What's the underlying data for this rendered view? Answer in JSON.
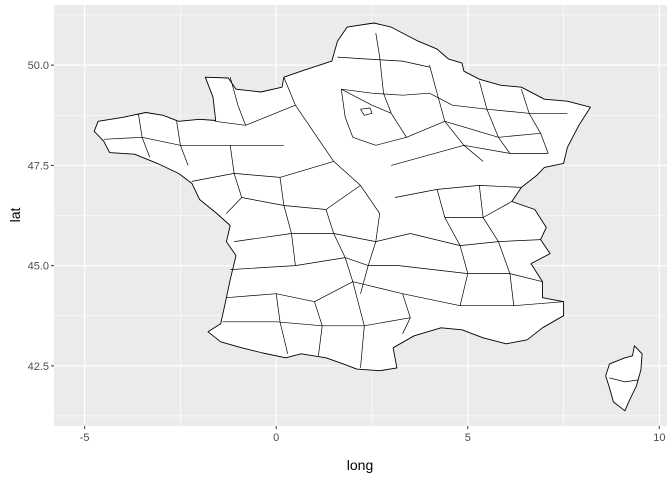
{
  "chart_data": {
    "type": "map",
    "xlabel": "long",
    "ylabel": "lat",
    "xlim": [
      -5.8,
      10.2
    ],
    "ylim": [
      41.0,
      51.5
    ],
    "x_ticks": [
      -5,
      0,
      5,
      10
    ],
    "x_tick_labels": [
      "-5",
      "0",
      "5",
      "10"
    ],
    "y_ticks": [
      42.5,
      45.0,
      47.5,
      50.0
    ],
    "y_tick_labels": [
      "42.5",
      "45.0",
      "47.5",
      "50.0"
    ],
    "grid": true,
    "panel_color": "#ebebeb",
    "grid_color": "#ffffff",
    "fill_color": "#ffffff",
    "stroke_color": "#000000",
    "mainland_outline": [
      [
        2.55,
        51.05
      ],
      [
        3.0,
        50.95
      ],
      [
        3.3,
        50.8
      ],
      [
        3.7,
        50.6
      ],
      [
        4.2,
        50.4
      ],
      [
        4.5,
        50.15
      ],
      [
        4.85,
        50.05
      ],
      [
        4.9,
        49.85
      ],
      [
        5.3,
        49.65
      ],
      [
        5.85,
        49.5
      ],
      [
        6.4,
        49.45
      ],
      [
        7.0,
        49.15
      ],
      [
        7.6,
        49.1
      ],
      [
        8.2,
        48.95
      ],
      [
        7.9,
        48.5
      ],
      [
        7.6,
        47.95
      ],
      [
        7.5,
        47.55
      ],
      [
        7.0,
        47.45
      ],
      [
        6.8,
        47.25
      ],
      [
        6.4,
        46.95
      ],
      [
        6.15,
        46.6
      ],
      [
        6.75,
        46.4
      ],
      [
        7.05,
        45.95
      ],
      [
        6.9,
        45.65
      ],
      [
        7.15,
        45.3
      ],
      [
        6.65,
        45.05
      ],
      [
        6.95,
        44.6
      ],
      [
        6.95,
        44.2
      ],
      [
        7.5,
        44.1
      ],
      [
        7.5,
        43.75
      ],
      [
        6.95,
        43.45
      ],
      [
        6.55,
        43.15
      ],
      [
        6.0,
        43.05
      ],
      [
        5.4,
        43.2
      ],
      [
        4.85,
        43.4
      ],
      [
        4.3,
        43.45
      ],
      [
        3.6,
        43.25
      ],
      [
        3.05,
        42.95
      ],
      [
        3.15,
        42.45
      ],
      [
        2.7,
        42.38
      ],
      [
        2.1,
        42.42
      ],
      [
        1.75,
        42.55
      ],
      [
        1.3,
        42.7
      ],
      [
        0.65,
        42.8
      ],
      [
        0.25,
        42.7
      ],
      [
        -0.35,
        42.82
      ],
      [
        -0.9,
        42.95
      ],
      [
        -1.45,
        43.1
      ],
      [
        -1.78,
        43.35
      ],
      [
        -1.45,
        43.55
      ],
      [
        -1.3,
        44.2
      ],
      [
        -1.2,
        44.65
      ],
      [
        -1.05,
        45.25
      ],
      [
        -1.3,
        45.6
      ],
      [
        -1.2,
        46.0
      ],
      [
        -1.55,
        46.3
      ],
      [
        -2.0,
        46.65
      ],
      [
        -2.2,
        47.05
      ],
      [
        -2.55,
        47.3
      ],
      [
        -3.1,
        47.55
      ],
      [
        -3.7,
        47.78
      ],
      [
        -4.35,
        47.82
      ],
      [
        -4.5,
        48.1
      ],
      [
        -4.75,
        48.35
      ],
      [
        -4.65,
        48.6
      ],
      [
        -4.0,
        48.7
      ],
      [
        -3.4,
        48.82
      ],
      [
        -2.95,
        48.75
      ],
      [
        -2.55,
        48.6
      ],
      [
        -2.0,
        48.65
      ],
      [
        -1.58,
        48.62
      ],
      [
        -1.65,
        49.2
      ],
      [
        -1.85,
        49.7
      ],
      [
        -1.25,
        49.68
      ],
      [
        -1.05,
        49.4
      ],
      [
        -0.4,
        49.33
      ],
      [
        0.15,
        49.45
      ],
      [
        0.2,
        49.7
      ],
      [
        0.65,
        49.85
      ],
      [
        1.45,
        50.1
      ],
      [
        1.6,
        50.6
      ],
      [
        1.85,
        50.95
      ]
    ],
    "corsica_outline": [
      [
        9.35,
        43.0
      ],
      [
        9.55,
        42.8
      ],
      [
        9.52,
        42.4
      ],
      [
        9.4,
        42.0
      ],
      [
        9.2,
        41.6
      ],
      [
        9.1,
        41.38
      ],
      [
        8.8,
        41.6
      ],
      [
        8.7,
        41.95
      ],
      [
        8.6,
        42.25
      ],
      [
        8.7,
        42.55
      ],
      [
        9.1,
        42.7
      ],
      [
        9.3,
        42.75
      ]
    ],
    "department_borders": [
      [
        [
          1.6,
          50.2
        ],
        [
          2.4,
          50.15
        ],
        [
          3.3,
          50.1
        ],
        [
          4.0,
          49.95
        ]
      ],
      [
        [
          1.7,
          49.4
        ],
        [
          2.5,
          49.3
        ],
        [
          3.3,
          49.25
        ],
        [
          4.0,
          49.3
        ]
      ],
      [
        [
          2.6,
          50.8
        ],
        [
          2.7,
          50.2
        ],
        [
          2.8,
          49.3
        ],
        [
          3.0,
          48.8
        ]
      ],
      [
        [
          4.0,
          50.0
        ],
        [
          4.2,
          49.3
        ],
        [
          4.4,
          48.6
        ],
        [
          4.9,
          48.0
        ],
        [
          5.4,
          47.6
        ]
      ],
      [
        [
          5.3,
          49.6
        ],
        [
          5.5,
          48.9
        ],
        [
          5.8,
          48.2
        ],
        [
          6.1,
          47.8
        ]
      ],
      [
        [
          6.4,
          49.4
        ],
        [
          6.6,
          48.8
        ],
        [
          6.9,
          48.3
        ],
        [
          7.1,
          47.8
        ]
      ],
      [
        [
          4.0,
          49.3
        ],
        [
          4.6,
          49.0
        ],
        [
          5.5,
          48.9
        ],
        [
          6.6,
          48.8
        ],
        [
          7.6,
          48.8
        ]
      ],
      [
        [
          3.4,
          48.2
        ],
        [
          4.4,
          48.6
        ],
        [
          5.8,
          48.2
        ],
        [
          6.9,
          48.3
        ]
      ],
      [
        [
          3.0,
          47.5
        ],
        [
          4.9,
          48.0
        ],
        [
          6.1,
          47.8
        ],
        [
          7.1,
          47.8
        ]
      ],
      [
        [
          3.1,
          46.7
        ],
        [
          4.2,
          46.9
        ],
        [
          5.3,
          47.0
        ],
        [
          6.4,
          46.95
        ]
      ],
      [
        [
          4.2,
          46.9
        ],
        [
          4.4,
          46.2
        ],
        [
          4.8,
          45.5
        ],
        [
          5.0,
          44.8
        ],
        [
          4.8,
          44.0
        ]
      ],
      [
        [
          5.3,
          47.0
        ],
        [
          5.4,
          46.2
        ],
        [
          5.8,
          45.6
        ],
        [
          6.1,
          44.8
        ],
        [
          6.2,
          44.0
        ]
      ],
      [
        [
          4.4,
          46.2
        ],
        [
          5.4,
          46.2
        ],
        [
          6.15,
          46.6
        ]
      ],
      [
        [
          3.5,
          45.8
        ],
        [
          4.8,
          45.5
        ],
        [
          5.8,
          45.6
        ],
        [
          6.9,
          45.65
        ]
      ],
      [
        [
          3.2,
          45.0
        ],
        [
          5.0,
          44.8
        ],
        [
          6.1,
          44.8
        ],
        [
          6.95,
          44.6
        ]
      ],
      [
        [
          3.3,
          44.3
        ],
        [
          4.8,
          44.0
        ],
        [
          6.2,
          44.0
        ],
        [
          7.5,
          44.1
        ]
      ],
      [
        [
          0.2,
          49.7
        ],
        [
          0.5,
          49.0
        ],
        [
          1.0,
          48.3
        ],
        [
          1.5,
          47.6
        ],
        [
          2.2,
          47.0
        ],
        [
          2.7,
          46.3
        ]
      ],
      [
        [
          -1.6,
          48.6
        ],
        [
          -0.8,
          48.5
        ],
        [
          0.5,
          49.0
        ]
      ],
      [
        [
          -1.2,
          49.7
        ],
        [
          -1.0,
          49.0
        ],
        [
          -0.8,
          48.5
        ]
      ],
      [
        [
          -3.6,
          48.8
        ],
        [
          -3.5,
          48.2
        ],
        [
          -3.3,
          47.7
        ]
      ],
      [
        [
          -2.6,
          48.6
        ],
        [
          -2.5,
          48.0
        ],
        [
          -2.3,
          47.5
        ]
      ],
      [
        [
          -4.5,
          48.15
        ],
        [
          -3.5,
          48.2
        ],
        [
          -2.5,
          48.0
        ],
        [
          -1.2,
          48.0
        ],
        [
          0.2,
          48.0
        ]
      ],
      [
        [
          -1.2,
          48.0
        ],
        [
          -1.1,
          47.3
        ],
        [
          -0.9,
          46.7
        ]
      ],
      [
        [
          -2.2,
          47.1
        ],
        [
          -1.1,
          47.3
        ],
        [
          0.1,
          47.2
        ],
        [
          1.5,
          47.6
        ]
      ],
      [
        [
          0.1,
          47.2
        ],
        [
          0.2,
          46.5
        ],
        [
          0.4,
          45.8
        ],
        [
          0.5,
          45.0
        ]
      ],
      [
        [
          -1.3,
          46.3
        ],
        [
          -0.9,
          46.7
        ],
        [
          0.2,
          46.5
        ],
        [
          1.3,
          46.4
        ],
        [
          2.2,
          47.0
        ]
      ],
      [
        [
          1.3,
          46.4
        ],
        [
          1.5,
          45.8
        ],
        [
          1.8,
          45.2
        ],
        [
          2.0,
          44.6
        ]
      ],
      [
        [
          2.7,
          46.3
        ],
        [
          2.6,
          45.6
        ],
        [
          2.4,
          45.0
        ],
        [
          2.2,
          44.3
        ]
      ],
      [
        [
          -1.1,
          45.6
        ],
        [
          0.4,
          45.8
        ],
        [
          1.5,
          45.8
        ],
        [
          2.6,
          45.6
        ],
        [
          3.5,
          45.8
        ]
      ],
      [
        [
          -1.2,
          44.9
        ],
        [
          0.5,
          45.0
        ],
        [
          1.8,
          45.2
        ],
        [
          2.4,
          45.0
        ],
        [
          3.2,
          45.0
        ]
      ],
      [
        [
          -1.3,
          44.2
        ],
        [
          0.0,
          44.3
        ],
        [
          1.0,
          44.1
        ],
        [
          2.0,
          44.6
        ],
        [
          3.3,
          44.3
        ]
      ],
      [
        [
          -1.4,
          43.6
        ],
        [
          0.0,
          43.6
        ],
        [
          1.2,
          43.5
        ],
        [
          2.3,
          43.5
        ],
        [
          3.5,
          43.7
        ]
      ],
      [
        [
          0.0,
          44.3
        ],
        [
          0.1,
          43.6
        ],
        [
          0.3,
          42.8
        ]
      ],
      [
        [
          1.0,
          44.1
        ],
        [
          1.2,
          43.5
        ],
        [
          1.1,
          42.75
        ]
      ],
      [
        [
          2.0,
          44.6
        ],
        [
          2.3,
          43.5
        ],
        [
          2.2,
          42.45
        ]
      ],
      [
        [
          3.3,
          44.3
        ],
        [
          3.5,
          43.7
        ],
        [
          3.3,
          43.3
        ]
      ],
      [
        [
          1.7,
          49.4
        ],
        [
          1.8,
          48.7
        ],
        [
          2.0,
          48.2
        ],
        [
          2.6,
          48.0
        ],
        [
          3.4,
          48.2
        ],
        [
          3.0,
          48.8
        ],
        [
          2.5,
          49.0
        ],
        [
          1.7,
          49.4
        ]
      ],
      [
        [
          2.2,
          48.9
        ],
        [
          2.45,
          48.93
        ],
        [
          2.5,
          48.8
        ],
        [
          2.3,
          48.75
        ],
        [
          2.2,
          48.9
        ]
      ]
    ]
  }
}
